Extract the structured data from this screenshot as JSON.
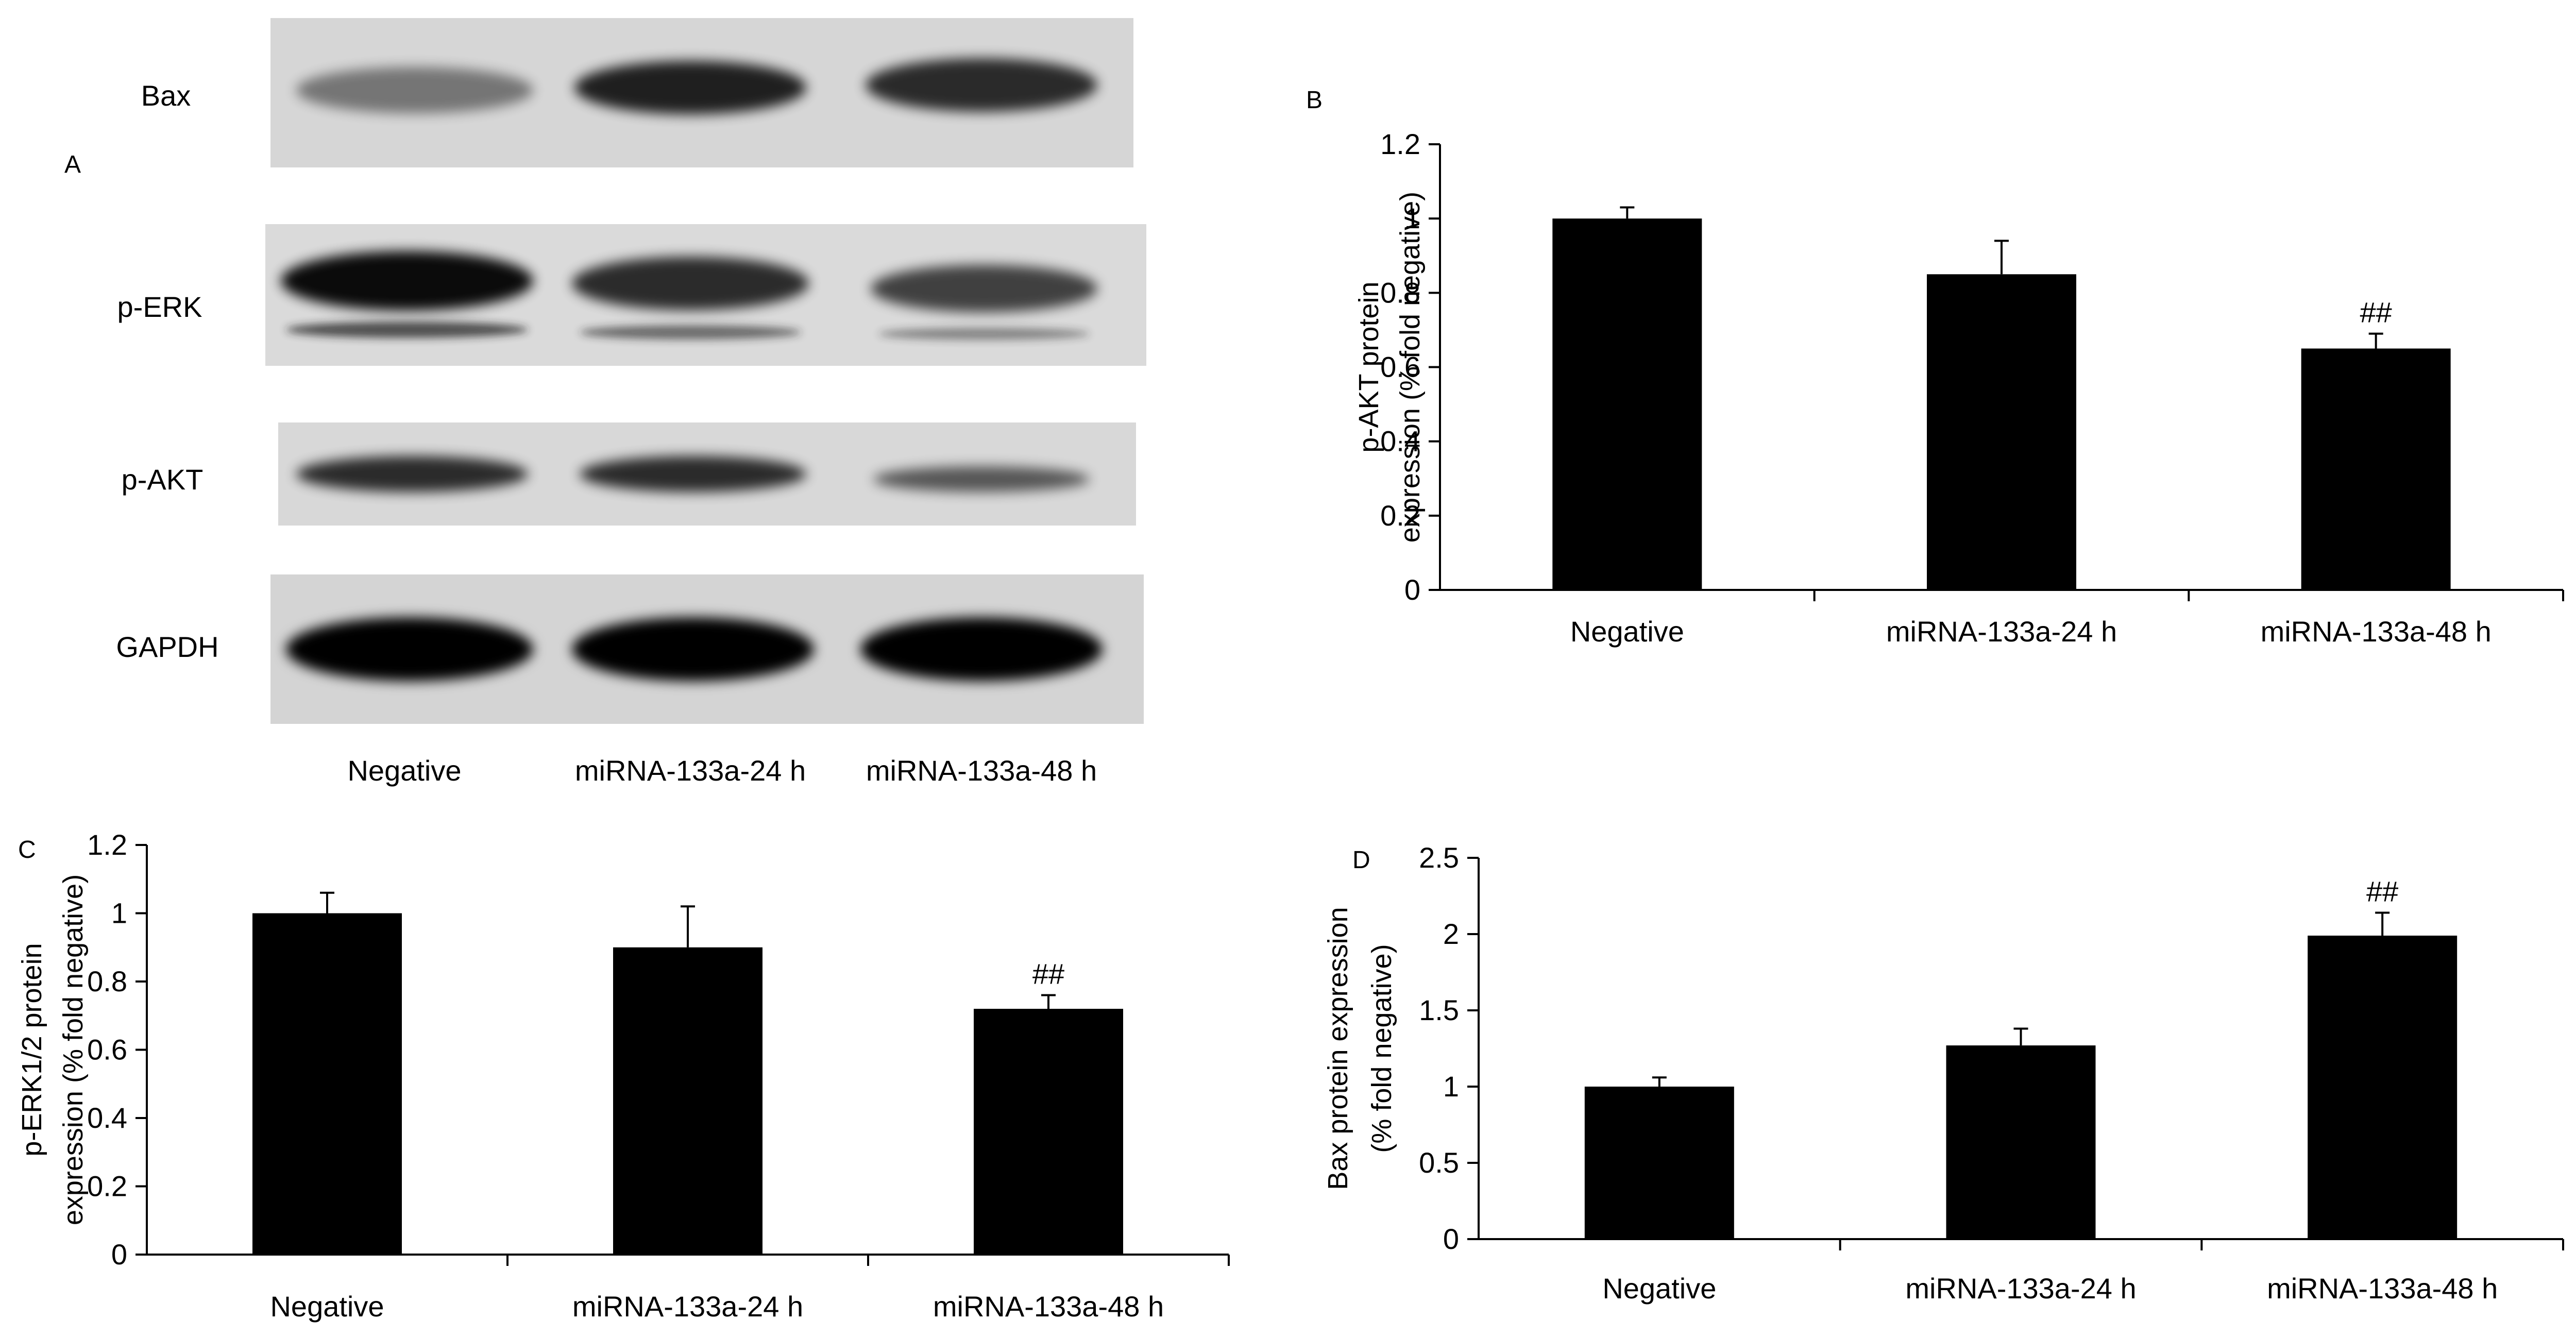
{
  "figure": {
    "panel_a": {
      "letter": "A",
      "rows": [
        {
          "label": "Bax",
          "intensity": [
            0.45,
            0.85,
            0.8
          ]
        },
        {
          "label": "p-ERK",
          "intensity": [
            0.95,
            0.8,
            0.7
          ]
        },
        {
          "label": "p-AKT",
          "intensity": [
            0.8,
            0.8,
            0.6
          ]
        },
        {
          "label": "GAPDH",
          "intensity": [
            1.0,
            1.0,
            1.0
          ]
        }
      ],
      "lanes": [
        "Negative",
        "miRNA-133a-24 h",
        "miRNA-133a-48 h"
      ]
    }
  },
  "chart_data": [
    {
      "panel": "B",
      "type": "bar",
      "categories": [
        "Negative",
        "miRNA-133a-24 h",
        "miRNA-133a-48 h"
      ],
      "values": [
        1.0,
        0.85,
        0.65
      ],
      "errors": [
        0.03,
        0.09,
        0.04
      ],
      "annotations": [
        "",
        "",
        "##"
      ],
      "ylabel_lines": [
        "p-AKT protein",
        "expression (% fold negative)"
      ],
      "ylim": [
        0,
        1.2
      ],
      "yticks": [
        0,
        0.2,
        0.4,
        0.6,
        0.8,
        1,
        1.2
      ],
      "ytick_labels": [
        "0",
        "0.2",
        "0.4",
        "0.6",
        "0.8",
        "1",
        "1.2"
      ],
      "bar_color": "#000000"
    },
    {
      "panel": "C",
      "type": "bar",
      "categories": [
        "Negative",
        "miRNA-133a-24 h",
        "miRNA-133a-48 h"
      ],
      "values": [
        1.0,
        0.9,
        0.72
      ],
      "errors": [
        0.06,
        0.12,
        0.04
      ],
      "annotations": [
        "",
        "",
        "##"
      ],
      "ylabel_lines": [
        "p-ERK1/2 protein",
        "expression (% fold negative)"
      ],
      "ylim": [
        0,
        1.2
      ],
      "yticks": [
        0,
        0.2,
        0.4,
        0.6,
        0.8,
        1,
        1.2
      ],
      "ytick_labels": [
        "0",
        "0.2",
        "0.4",
        "0.6",
        "0.8",
        "1",
        "1.2"
      ],
      "bar_color": "#000000"
    },
    {
      "panel": "D",
      "type": "bar",
      "categories": [
        "Negative",
        "miRNA-133a-24 h",
        "miRNA-133a-48 h"
      ],
      "values": [
        1.0,
        1.27,
        1.99
      ],
      "errors": [
        0.06,
        0.11,
        0.15
      ],
      "annotations": [
        "",
        "",
        "##"
      ],
      "ylabel_lines": [
        "Bax protein expression",
        "(% fold negative)"
      ],
      "ylim": [
        0,
        2.5
      ],
      "yticks": [
        0,
        0.5,
        1,
        1.5,
        2,
        2.5
      ],
      "ytick_labels": [
        "0",
        "0.5",
        "1",
        "1.5",
        "2",
        "2.5"
      ],
      "bar_color": "#000000"
    }
  ]
}
